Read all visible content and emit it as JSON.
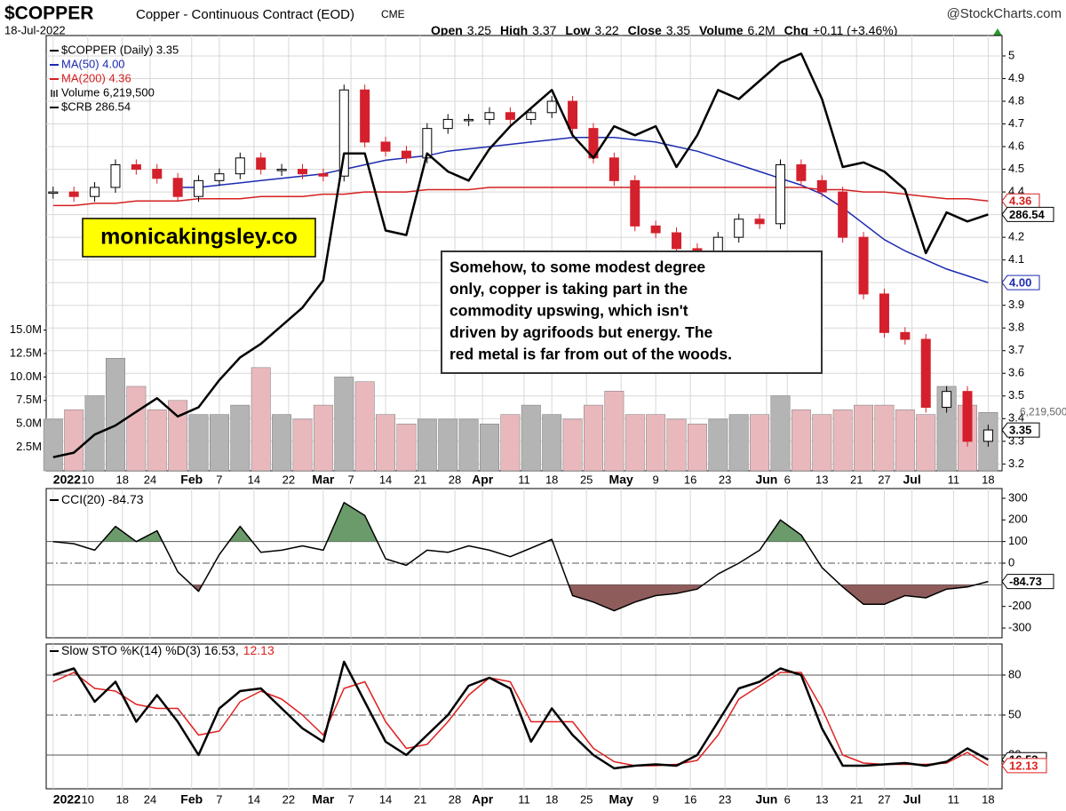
{
  "header": {
    "symbol": "$COPPER",
    "name": "Copper - Continuous Contract (EOD)",
    "exchange": "CME",
    "source": "@StockCharts.com",
    "date": "18-Jul-2022",
    "quote": [
      {
        "label": "Open",
        "value": "3.25"
      },
      {
        "label": "High",
        "value": "3.37"
      },
      {
        "label": "Low",
        "value": "3.22"
      },
      {
        "label": "Close",
        "value": "3.35"
      },
      {
        "label": "Volume",
        "value": "6.2M"
      },
      {
        "label": "Chg",
        "value": "+0.11 (+3.46%)"
      }
    ]
  },
  "watermark": "monicakingsley.co",
  "annotation": [
    "Somehow, to some modest degree",
    "only, copper is taking part in the",
    "commodity upswing, which isn't",
    "driven by agrifoods but energy. The",
    "red metal is far from out of the woods."
  ],
  "chart_data": [
    {
      "type": "stock",
      "grid": true,
      "x": [
        0,
        3,
        6,
        9,
        12,
        15,
        18,
        21,
        24,
        27,
        30,
        33,
        36,
        39,
        42,
        45,
        48,
        51,
        54,
        57,
        60,
        63,
        66,
        69,
        72,
        75,
        78,
        81,
        84,
        87,
        90,
        93,
        96,
        99,
        102,
        105,
        108,
        111,
        114,
        117,
        120,
        123,
        126,
        129,
        132,
        135
      ],
      "xlim": [
        -1,
        137
      ],
      "xticks": [
        {
          "value": 0,
          "label": "2022"
        },
        {
          "value": 5,
          "label": "10"
        },
        {
          "value": 10,
          "label": "18"
        },
        {
          "value": 14,
          "label": "24"
        },
        {
          "value": 20,
          "label": "Feb"
        },
        {
          "value": 24,
          "label": "7"
        },
        {
          "value": 29,
          "label": "14"
        },
        {
          "value": 34,
          "label": "22"
        },
        {
          "value": 39,
          "label": "Mar"
        },
        {
          "value": 43,
          "label": "7"
        },
        {
          "value": 48,
          "label": "14"
        },
        {
          "value": 53,
          "label": "21"
        },
        {
          "value": 58,
          "label": "28"
        },
        {
          "value": 62,
          "label": "Apr"
        },
        {
          "value": 68,
          "label": "11"
        },
        {
          "value": 72,
          "label": "18"
        },
        {
          "value": 77,
          "label": "25"
        },
        {
          "value": 82,
          "label": "May"
        },
        {
          "value": 87,
          "label": "9"
        },
        {
          "value": 92,
          "label": "16"
        },
        {
          "value": 97,
          "label": "23"
        },
        {
          "value": 103,
          "label": "Jun"
        },
        {
          "value": 106,
          "label": "6"
        },
        {
          "value": 111,
          "label": "13"
        },
        {
          "value": 116,
          "label": "21"
        },
        {
          "value": 120,
          "label": "27"
        },
        {
          "value": 124,
          "label": "Jul"
        },
        {
          "value": 130,
          "label": "11"
        },
        {
          "value": 135,
          "label": "18"
        }
      ],
      "ylim": [
        3.17,
        5.09
      ],
      "yticks": [
        3.2,
        3.3,
        3.4,
        3.5,
        3.6,
        3.7,
        3.8,
        3.9,
        4.0,
        4.1,
        4.2,
        4.3,
        4.4,
        4.5,
        4.6,
        4.7,
        4.8,
        4.9,
        5.0
      ],
      "y2lim": [
        230,
        326
      ],
      "vlim": [
        0,
        46400000
      ],
      "vticks": [
        {
          "value": 2500000,
          "label": "2.5M"
        },
        {
          "value": 5000000,
          "label": "5.0M"
        },
        {
          "value": 7500000,
          "label": "7.5M"
        },
        {
          "value": 10000000,
          "label": "10.0M"
        },
        {
          "value": 12500000,
          "label": "12.5M"
        },
        {
          "value": 15000000,
          "label": "15.0M"
        }
      ],
      "series": [
        {
          "name": "$COPPER (Daily) 3.35",
          "kind": "candle",
          "color": "#000000",
          "down_color": "#d4202c",
          "last_label": "3.35",
          "values": [
            4.4,
            4.38,
            4.42,
            4.52,
            4.5,
            4.46,
            4.38,
            4.45,
            4.48,
            4.55,
            4.5,
            4.5,
            4.48,
            4.47,
            4.85,
            4.62,
            4.58,
            4.55,
            4.68,
            4.72,
            4.72,
            4.75,
            4.72,
            4.75,
            4.8,
            4.68,
            4.55,
            4.45,
            4.25,
            4.22,
            4.15,
            4.1,
            4.2,
            4.28,
            4.26,
            4.52,
            4.45,
            4.4,
            4.2,
            3.95,
            3.78,
            3.75,
            3.45,
            3.52,
            3.3,
            3.35
          ]
        },
        {
          "name": "MA(50) 4.00",
          "kind": "line",
          "color": "#1c2bb0",
          "last_label": "4.00",
          "values": [
            null,
            null,
            null,
            null,
            null,
            null,
            4.42,
            4.42,
            4.43,
            4.44,
            4.45,
            4.46,
            4.47,
            4.48,
            4.5,
            4.52,
            4.54,
            4.55,
            4.56,
            4.58,
            4.59,
            4.6,
            4.61,
            4.62,
            4.63,
            4.64,
            4.64,
            4.64,
            4.63,
            4.62,
            4.6,
            4.58,
            4.55,
            4.52,
            4.49,
            4.46,
            4.43,
            4.39,
            4.33,
            4.26,
            4.19,
            4.14,
            4.1,
            4.06,
            4.03,
            4.0
          ]
        },
        {
          "name": "MA(200) 4.36",
          "kind": "line",
          "color": "#d42020",
          "last_label": "4.36",
          "values": [
            4.34,
            4.34,
            4.35,
            4.35,
            4.36,
            4.36,
            4.36,
            4.37,
            4.37,
            4.37,
            4.38,
            4.38,
            4.38,
            4.39,
            4.39,
            4.4,
            4.4,
            4.4,
            4.41,
            4.41,
            4.41,
            4.42,
            4.42,
            4.42,
            4.42,
            4.42,
            4.42,
            4.42,
            4.42,
            4.42,
            4.42,
            4.42,
            4.42,
            4.42,
            4.42,
            4.42,
            4.42,
            4.41,
            4.41,
            4.4,
            4.4,
            4.39,
            4.38,
            4.37,
            4.37,
            4.36
          ]
        },
        {
          "name": "Volume 6,219,500",
          "kind": "volume",
          "axis": "volume",
          "color": "#b4b4b4",
          "down_color": "#e9b8bd",
          "last_label": "6,219,500",
          "values": [
            5500000,
            6500000,
            8000000,
            12000000,
            9000000,
            6500000,
            7500000,
            6000000,
            6000000,
            7000000,
            11000000,
            6000000,
            5500000,
            7000000,
            10000000,
            9500000,
            6000000,
            5000000,
            5500000,
            5500000,
            5500000,
            5000000,
            6000000,
            7000000,
            6000000,
            5500000,
            7000000,
            8500000,
            6000000,
            6000000,
            5500000,
            5000000,
            5500000,
            6000000,
            6000000,
            8000000,
            6500000,
            6000000,
            6500000,
            7000000,
            7000000,
            6500000,
            6000000,
            9000000,
            7000000,
            6219500
          ]
        },
        {
          "name": "$CRB 286.54",
          "kind": "line",
          "axis": "y2",
          "color": "#000000",
          "width": 2.5,
          "last_label": "286.54",
          "values": [
            233,
            234,
            238,
            240,
            243,
            246,
            242,
            244,
            250,
            255,
            258,
            262,
            266,
            272,
            300,
            300,
            283,
            282,
            300,
            296,
            294,
            301,
            306,
            310,
            314,
            304,
            299,
            306,
            304,
            306,
            297,
            304,
            314,
            312,
            316,
            320,
            322,
            312,
            297,
            298,
            296,
            292,
            278,
            287,
            285,
            286.54
          ]
        }
      ]
    },
    {
      "type": "cci",
      "grid": true,
      "x": [
        0,
        3,
        6,
        9,
        12,
        15,
        18,
        21,
        24,
        27,
        30,
        33,
        36,
        39,
        42,
        45,
        48,
        51,
        54,
        57,
        60,
        63,
        66,
        69,
        72,
        75,
        78,
        81,
        84,
        87,
        90,
        93,
        96,
        99,
        102,
        105,
        108,
        111,
        114,
        117,
        120,
        123,
        126,
        129,
        132,
        135
      ],
      "xlim": [
        -1,
        137
      ],
      "ylim": [
        -345,
        345
      ],
      "yticks": [
        300,
        200,
        100,
        0,
        -200,
        -300
      ],
      "levels": [
        100,
        -100
      ],
      "dashed_levels": [
        0
      ],
      "above_color": "#6b9a6b",
      "below_color": "#8f5c5c",
      "series": [
        {
          "name": "CCI(20) -84.73",
          "color": "#000000",
          "last_label": "-84.73",
          "values": [
            100,
            90,
            60,
            170,
            100,
            150,
            -40,
            -130,
            40,
            170,
            50,
            60,
            80,
            60,
            280,
            220,
            20,
            -10,
            60,
            50,
            80,
            60,
            30,
            70,
            110,
            -150,
            -180,
            -220,
            -180,
            -150,
            -140,
            -120,
            -50,
            0,
            60,
            200,
            130,
            -20,
            -110,
            -190,
            -190,
            -150,
            -160,
            -120,
            -110,
            -84.73
          ]
        }
      ]
    },
    {
      "type": "line",
      "grid": true,
      "x": [
        0,
        3,
        6,
        9,
        12,
        15,
        18,
        21,
        24,
        27,
        30,
        33,
        36,
        39,
        42,
        45,
        48,
        51,
        54,
        57,
        60,
        63,
        66,
        69,
        72,
        75,
        78,
        81,
        84,
        87,
        90,
        93,
        96,
        99,
        102,
        105,
        108,
        111,
        114,
        117,
        120,
        123,
        126,
        129,
        132,
        135
      ],
      "xlim": [
        -1,
        137
      ],
      "xticks": [
        {
          "value": 0,
          "label": "2022"
        },
        {
          "value": 5,
          "label": "10"
        },
        {
          "value": 10,
          "label": "18"
        },
        {
          "value": 14,
          "label": "24"
        },
        {
          "value": 20,
          "label": "Feb"
        },
        {
          "value": 24,
          "label": "7"
        },
        {
          "value": 29,
          "label": "14"
        },
        {
          "value": 34,
          "label": "22"
        },
        {
          "value": 39,
          "label": "Mar"
        },
        {
          "value": 43,
          "label": "7"
        },
        {
          "value": 48,
          "label": "14"
        },
        {
          "value": 53,
          "label": "21"
        },
        {
          "value": 58,
          "label": "28"
        },
        {
          "value": 62,
          "label": "Apr"
        },
        {
          "value": 68,
          "label": "11"
        },
        {
          "value": 72,
          "label": "18"
        },
        {
          "value": 77,
          "label": "25"
        },
        {
          "value": 82,
          "label": "May"
        },
        {
          "value": 87,
          "label": "9"
        },
        {
          "value": 92,
          "label": "16"
        },
        {
          "value": 97,
          "label": "23"
        },
        {
          "value": 103,
          "label": "Jun"
        },
        {
          "value": 106,
          "label": "6"
        },
        {
          "value": 111,
          "label": "13"
        },
        {
          "value": 116,
          "label": "21"
        },
        {
          "value": 120,
          "label": "27"
        },
        {
          "value": 124,
          "label": "Jul"
        },
        {
          "value": 130,
          "label": "11"
        },
        {
          "value": 135,
          "label": "18"
        }
      ],
      "ylim": [
        -5.3,
        103.3
      ],
      "yticks": [
        80,
        50,
        20
      ],
      "levels": [
        80,
        20
      ],
      "dashed_levels": [
        50
      ],
      "series": [
        {
          "name": "Slow STO %K(14) %D(3) 16.53,",
          "color": "#000000",
          "width": 2.5,
          "last_label": "16.53",
          "values": [
            80,
            85,
            60,
            75,
            45,
            65,
            45,
            20,
            55,
            68,
            70,
            55,
            40,
            30,
            90,
            60,
            30,
            20,
            35,
            50,
            72,
            78,
            70,
            30,
            55,
            35,
            20,
            10,
            12,
            13,
            12,
            20,
            45,
            70,
            75,
            85,
            80,
            40,
            12,
            12,
            13,
            14,
            12,
            15,
            25,
            16.53
          ]
        },
        {
          "name": "12.13",
          "color": "#e02020",
          "width": 1.5,
          "last_label": "12.13",
          "values": [
            75,
            82,
            70,
            68,
            58,
            55,
            55,
            35,
            38,
            60,
            68,
            62,
            50,
            35,
            70,
            75,
            45,
            25,
            28,
            45,
            65,
            78,
            75,
            45,
            45,
            45,
            25,
            15,
            12,
            12,
            13,
            16,
            35,
            62,
            72,
            82,
            82,
            55,
            20,
            14,
            13,
            13,
            13,
            14,
            22,
            12.13
          ]
        }
      ]
    }
  ]
}
